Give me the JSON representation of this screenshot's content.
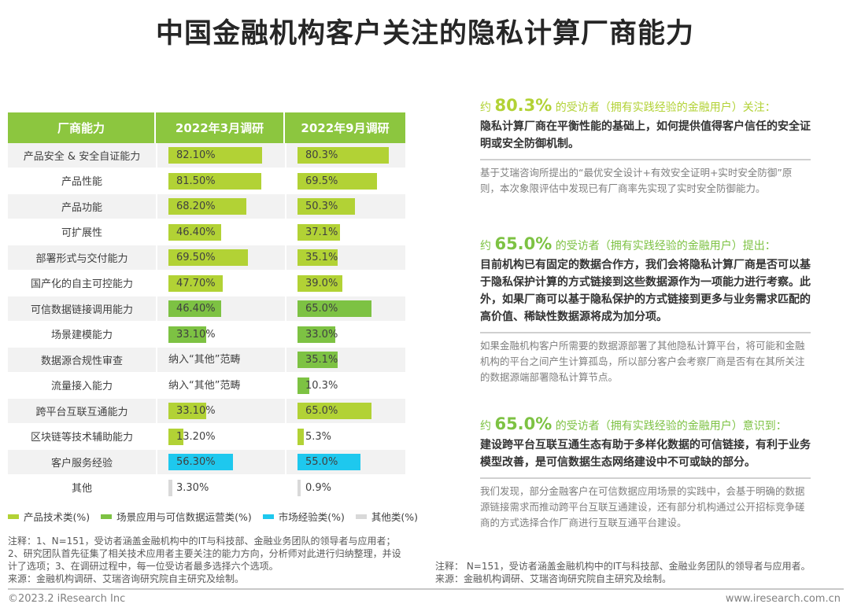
{
  "title": "中国金融机构客户关注的隐私计算厂商能力",
  "colors": {
    "product_tech": "#b2d235",
    "scenario": "#7dc243",
    "market": "#1ec8ee",
    "other": "#d9d9d9",
    "header": "#8cc63f"
  },
  "chart_data": {
    "type": "table",
    "headers": [
      "厂商能力",
      "2022年3月调研",
      "2022年9月调研"
    ],
    "rows": [
      {
        "name": "产品安全 & 安全自证能力",
        "mar": 82.1,
        "mar_label": "82.10%",
        "sep": 80.3,
        "sep_label": "80.3%",
        "cat": "product_tech"
      },
      {
        "name": "产品性能",
        "mar": 81.5,
        "mar_label": "81.50%",
        "sep": 69.5,
        "sep_label": "69.5%",
        "cat": "product_tech"
      },
      {
        "name": "产品功能",
        "mar": 68.2,
        "mar_label": "68.20%",
        "sep": 50.3,
        "sep_label": "50.3%",
        "cat": "product_tech"
      },
      {
        "name": "可扩展性",
        "mar": 46.4,
        "mar_label": "46.40%",
        "sep": 37.1,
        "sep_label": "37.1%",
        "cat": "product_tech"
      },
      {
        "name": "部署形式与交付能力",
        "mar": 69.5,
        "mar_label": "69.50%",
        "sep": 35.1,
        "sep_label": "35.1%",
        "cat": "product_tech"
      },
      {
        "name": "国产化的自主可控能力",
        "mar": 47.7,
        "mar_label": "47.70%",
        "sep": 39.0,
        "sep_label": "39.0%",
        "cat": "product_tech"
      },
      {
        "name": "可信数据链接调用能力",
        "mar": 46.4,
        "mar_label": "46.40%",
        "sep": 65.0,
        "sep_label": "65.0%",
        "cat": "scenario"
      },
      {
        "name": "场景建模能力",
        "mar": 33.1,
        "mar_label": "33.10%",
        "sep": 33.0,
        "sep_label": "33.0%",
        "cat": "scenario"
      },
      {
        "name": "数据源合规性审查",
        "mar": null,
        "mar_label": "纳入“其他”范畴",
        "sep": 35.1,
        "sep_label": "35.1%",
        "cat": "scenario"
      },
      {
        "name": "流量接入能力",
        "mar": null,
        "mar_label": "纳入“其他”范畴",
        "sep": 10.3,
        "sep_label": "10.3%",
        "cat": "scenario"
      },
      {
        "name": "跨平台互联互通能力",
        "mar": 33.1,
        "mar_label": "33.10%",
        "sep": 65.0,
        "sep_label": "65.0%",
        "cat": "product_tech"
      },
      {
        "name": "区块链等技术辅助能力",
        "mar": 13.2,
        "mar_label": "13.20%",
        "sep": 5.3,
        "sep_label": "5.3%",
        "cat": "product_tech"
      },
      {
        "name": "客户服务经验",
        "mar": 56.3,
        "mar_label": "56.30%",
        "sep": 55.0,
        "sep_label": "55.0%",
        "cat": "market"
      },
      {
        "name": "其他",
        "mar": 3.3,
        "mar_label": "3.30%",
        "sep": 0.9,
        "sep_label": "0.9%",
        "cat": "other"
      }
    ],
    "legend": [
      {
        "label": "产品技术类(%)",
        "cat": "product_tech"
      },
      {
        "label": "场景应用与可信数据运营类(%)",
        "cat": "scenario"
      },
      {
        "label": "市场经验类(%)",
        "cat": "market"
      },
      {
        "label": "其他类(%)",
        "cat": "other"
      }
    ]
  },
  "notes": "注释：1、N=151，受访者涵盖金融机构中的IT与科技部、金融业务团队的领导者与应用者；2、研究团队首先征集了相关技术应用者主要关注的能力方向，分析师对此进行归纳整理，并设计了选项；3、在调研过程中，每一位受访者最多选择六个选项。",
  "source": "来源：金融机构调研、艾瑞咨询研究院自主研究及绘制。",
  "right_notes": "注释： N=151，受访者涵盖金融机构中的IT与科技部、金融业务团队的领导者与应用者。",
  "right_source": "来源：金融机构调研、艾瑞咨询研究院自主研究及绘制。",
  "copyright": "©2023.2 iResearch Inc",
  "website": "www.iresearch.com.cn",
  "sections": [
    {
      "prefix": "约 ",
      "pct": "80.3%",
      "suffix": " 的受访者（拥有实践经验的金融用户）关注：",
      "color": "#b2d235",
      "bold": "隐私计算厂商在平衡性能的基础上，如何提供值得客户信任的安全证明或安全防御机制。",
      "grey": "基于艾瑞咨询所提出的“最优安全设计+有效安全证明+实时安全防御”原则，本次象限评估中发现已有厂商率先实现了实时安全防御能力。"
    },
    {
      "prefix": "约 ",
      "pct": "65.0%",
      "suffix": " 的受访者（拥有实践经验的金融用户）提出：",
      "color": "#7dc243",
      "bold": "目前机构已有固定的数据合作方，我们会将隐私计算厂商是否可以基于隐私保护计算的方式链接到这些数据源作为一项能力进行考察。此外，如果厂商可以基于隐私保护的方式链接到更多与业务需求匹配的高价值、稀缺性数据源将成为加分项。",
      "grey": "如果金融机构客户所需要的数据源部署了其他隐私计算平台，将可能和金融机构的平台之间产生计算孤岛，所以部分客户会考察厂商是否有在其所关注的数据源端部署隐私计算节点。"
    },
    {
      "prefix": "约 ",
      "pct": "65.0%",
      "suffix": " 的受访者（拥有实践经验的金融用户）意识到：",
      "color": "#7dc243",
      "bold": "建设跨平台互联互通生态有助于多样化数据的可信链接，有利于业务模型改善，是可信数据生态网络建设中不可或缺的部分。",
      "grey": "我们发现，部分金融客户在可信数据应用场景的实践中，会基于明确的数据源链接需求而推动跨平台互联互通建设，还有部分机构通过公开招标竞争磋商的方式选择合作厂商进行互联互通平台建设。"
    }
  ]
}
